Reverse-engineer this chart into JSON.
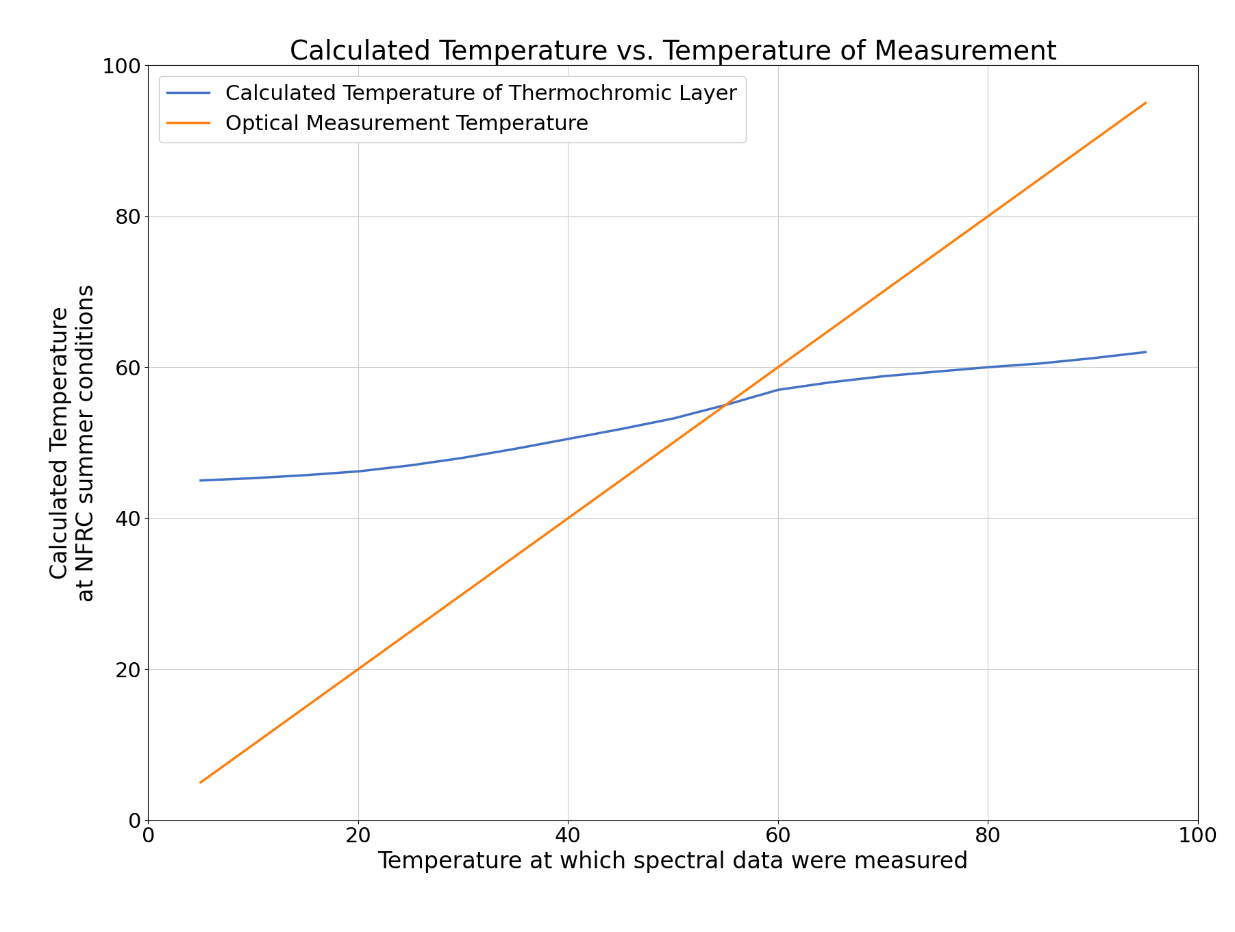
{
  "title": "Calculated Temperature vs. Temperature of Measurement",
  "xlabel": "Temperature at which spectral data were measured",
  "ylabel": "Calculated Temperature\nat NFRC summer conditions",
  "xlim": [
    0,
    100
  ],
  "ylim": [
    0,
    100
  ],
  "xticks": [
    0,
    20,
    40,
    60,
    80,
    100
  ],
  "yticks": [
    0,
    20,
    40,
    60,
    80,
    100
  ],
  "blue_line": {
    "x": [
      5,
      10,
      15,
      20,
      25,
      30,
      35,
      40,
      45,
      50,
      55,
      60,
      65,
      70,
      75,
      80,
      85,
      90,
      95
    ],
    "y": [
      45.0,
      45.3,
      45.7,
      46.2,
      47.0,
      48.0,
      49.2,
      50.5,
      51.8,
      53.2,
      55.0,
      57.0,
      58.0,
      58.8,
      59.4,
      60.0,
      60.5,
      61.2,
      62.0
    ],
    "color": "#4472c4",
    "label": "Calculated Temperature of Thermochromic Layer",
    "linewidth": 2.5
  },
  "orange_line": {
    "x": [
      5,
      95
    ],
    "y": [
      5,
      95
    ],
    "color": "#ff7f0e",
    "label": "Optical Measurement Temperature",
    "linewidth": 2.5
  },
  "grid_color": "#cccccc",
  "background_color": "#ffffff",
  "legend_fontsize": 22,
  "title_fontsize": 28,
  "axis_label_fontsize": 24,
  "tick_fontsize": 22
}
